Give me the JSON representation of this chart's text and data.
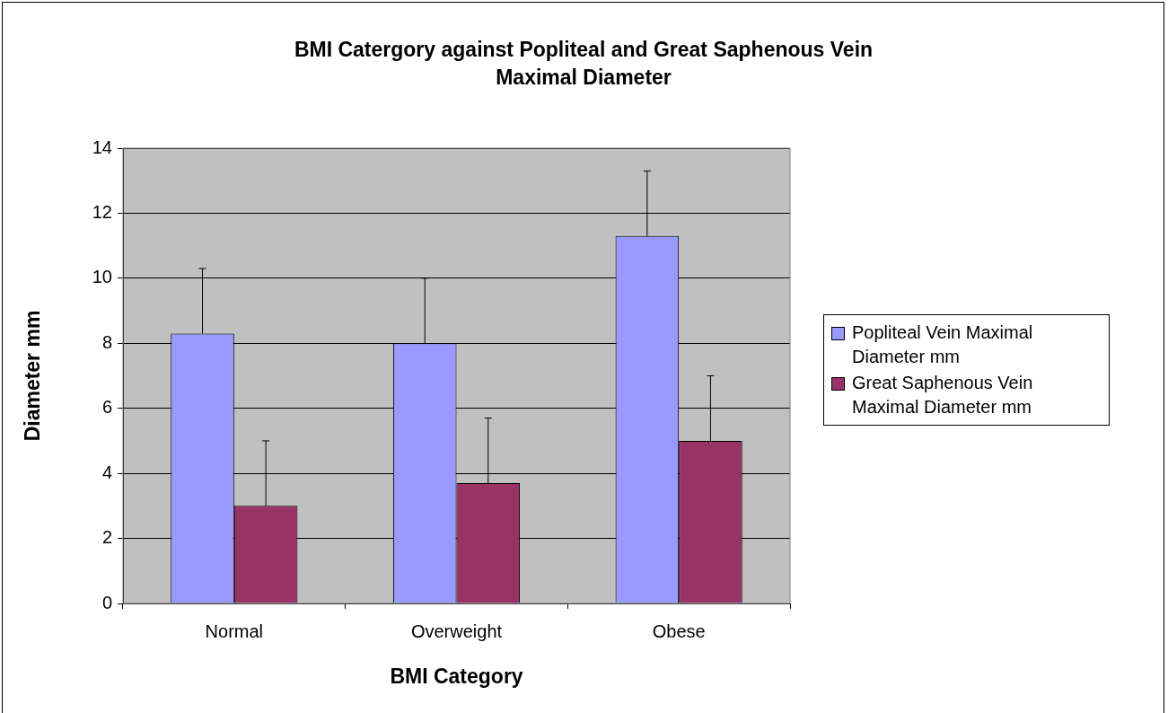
{
  "chart_data": {
    "type": "bar",
    "title": "BMI Catergory against Popliteal and Great Saphenous Vein Maximal Diameter",
    "xlabel": "BMI Category",
    "ylabel": "Diameter mm",
    "categories": [
      "Normal",
      "Overweight",
      "Obese"
    ],
    "series": [
      {
        "name": "Popliteal Vein Maximal Diameter mm",
        "color": "#9999ff",
        "values": [
          8.3,
          8.0,
          11.3
        ],
        "errors": [
          [
            8.3,
            10.3
          ],
          [
            8.0,
            10.0
          ],
          [
            11.3,
            13.3
          ]
        ]
      },
      {
        "name": "Great Saphenous Vein Maximal Diameter mm",
        "color": "#993366",
        "values": [
          3.0,
          3.7,
          5.0
        ],
        "errors": [
          [
            3.0,
            5.0
          ],
          [
            3.7,
            5.7
          ],
          [
            5.0,
            7.0
          ]
        ]
      }
    ],
    "ylim": [
      0,
      14
    ],
    "yticks": [
      0,
      2,
      4,
      6,
      8,
      10,
      12,
      14
    ],
    "grid": "y",
    "legend": "right"
  }
}
